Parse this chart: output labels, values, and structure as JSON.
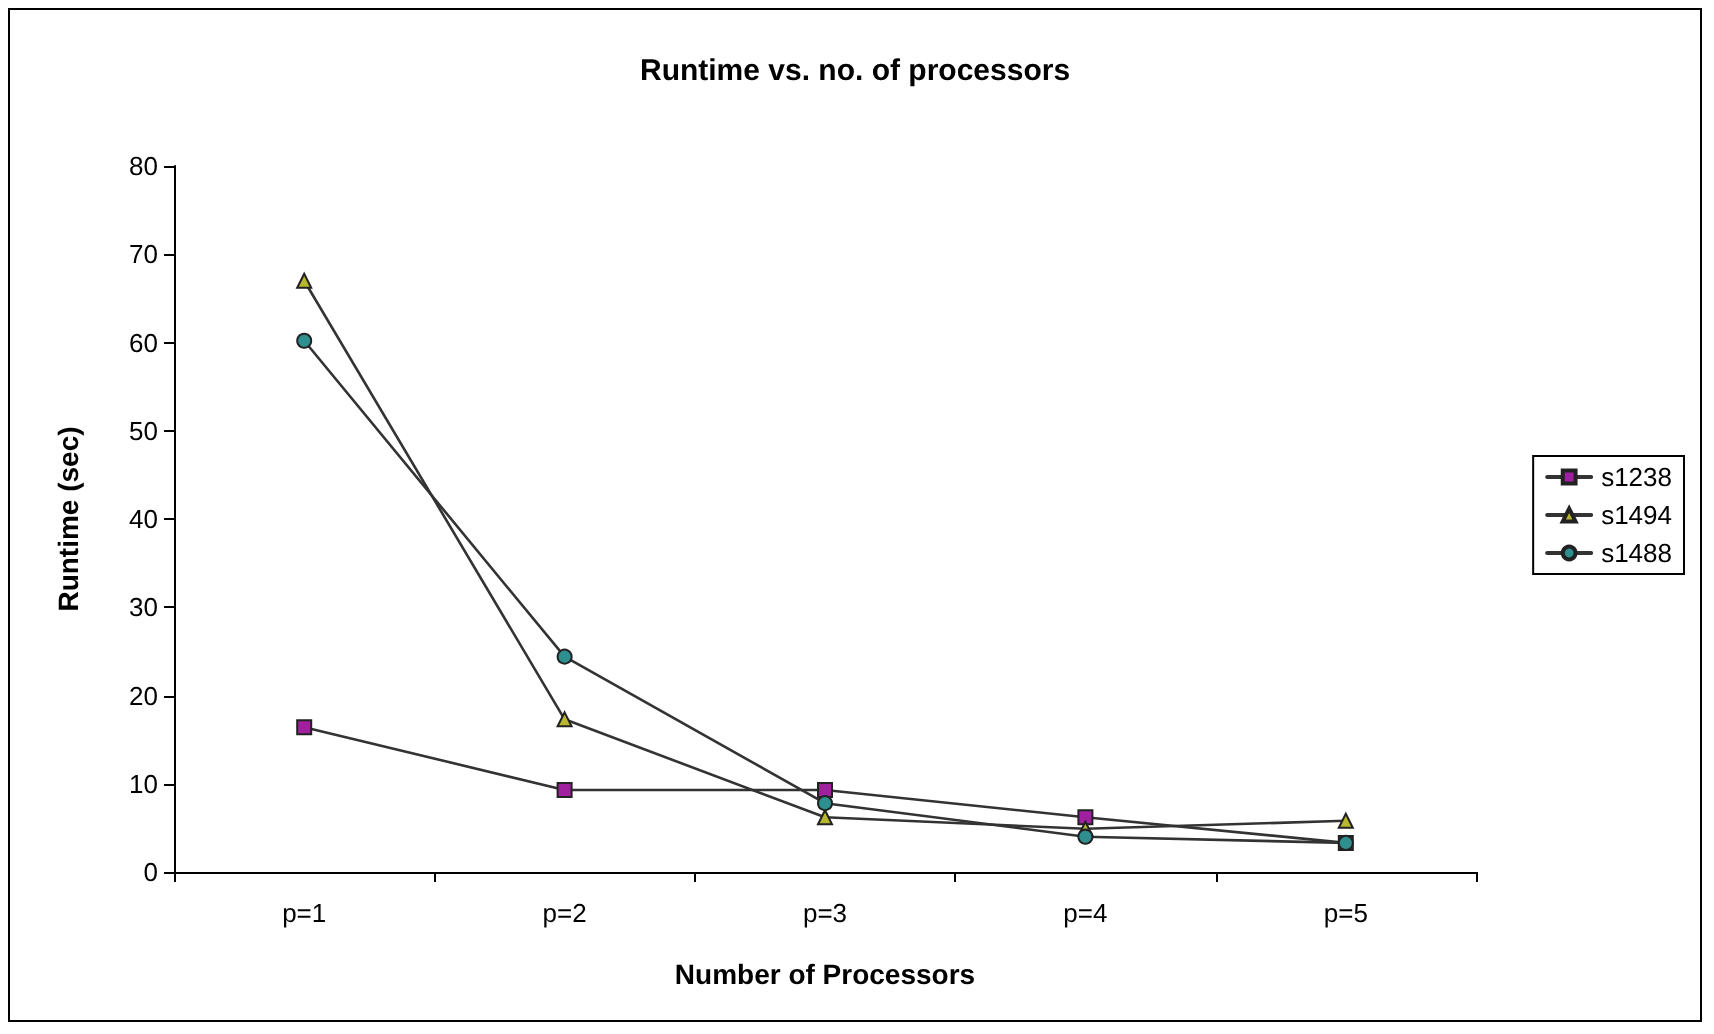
{
  "chart_data": {
    "type": "line",
    "title": "Runtime vs. no. of processors",
    "xlabel": "Number of Processors",
    "ylabel": "Runtime (sec)",
    "categories": [
      "p=1",
      "p=2",
      "p=3",
      "p=4",
      "p=5"
    ],
    "series": [
      {
        "name": "s1238",
        "color": "#a020a0",
        "marker": "square",
        "values": [
          16.4,
          9.3,
          9.3,
          6.2,
          3.3
        ]
      },
      {
        "name": "s1494",
        "color": "#b8b830",
        "marker": "triangle",
        "values": [
          67,
          17.3,
          6.2,
          4.9,
          5.8
        ]
      },
      {
        "name": "s1488",
        "color": "#2f8f8f",
        "marker": "circle",
        "values": [
          60.2,
          24.4,
          7.8,
          4,
          3.3
        ]
      }
    ],
    "ylim": [
      0,
      80
    ],
    "yticks": [
      0,
      10,
      20,
      30,
      40,
      50,
      60,
      70,
      80
    ],
    "grid": false,
    "legend": "right",
    "line_style": "solid"
  }
}
